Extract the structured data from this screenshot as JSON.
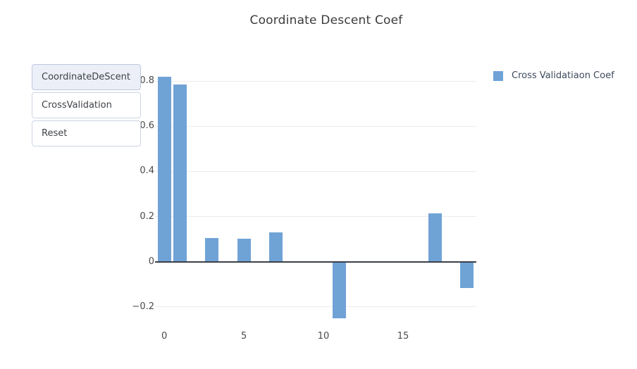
{
  "title": "Coordinate Descent Coef",
  "buttons": [
    {
      "label": "CoordinateDeScent",
      "active": true
    },
    {
      "label": "CrossValidation",
      "active": false
    },
    {
      "label": "Reset",
      "active": false
    }
  ],
  "legend": {
    "label": "Cross Validatiaon Coef",
    "swatch_color": "#6FA3D6"
  },
  "colors": {
    "bar": "#6FA3D6",
    "zero_line": "#3b3f46",
    "grid": "#ededed",
    "title_text": "#3b3b3b",
    "tick_text": "#4a4a4a",
    "legend_text": "#3d4a5c",
    "button_active_bg": "#eceff7",
    "button_border": "#ccd4e4"
  },
  "chart_data": {
    "type": "bar",
    "title": "Coordinate Descent Coef",
    "series_name": "Cross Validatiaon Coef",
    "x": [
      0,
      1,
      3,
      5,
      7,
      11,
      17,
      19
    ],
    "values": [
      0.82,
      0.785,
      0.105,
      0.102,
      0.13,
      -0.25,
      0.215,
      -0.115
    ],
    "xlabel": "",
    "ylabel": "",
    "xlim": [
      -0.58,
      19.6
    ],
    "ylim": [
      -0.3,
      0.875
    ],
    "x_ticks": [
      0,
      5,
      10,
      15
    ],
    "y_ticks": [
      0.8,
      0.6,
      0.4,
      0.2,
      0,
      -0.2
    ],
    "bar_width_units": 0.84,
    "grid": "horizontal-only",
    "legend_position": "right-outside",
    "zero_axis_line": true
  }
}
